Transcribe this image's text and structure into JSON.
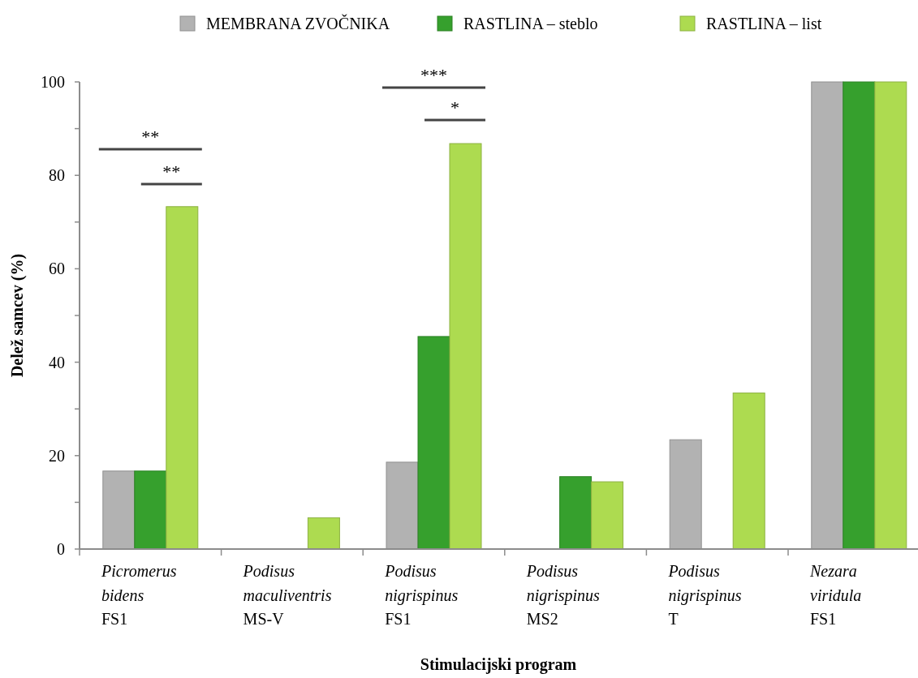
{
  "chart_data": {
    "type": "bar",
    "xlabel": "Stimulacijski program",
    "ylabel": "Delež samcev (%)",
    "categories": [
      "Picromerus\nbidens\nFS1",
      "Podisus\nmaculiventris\nMS-V",
      "Podisus\nnigrispinus\nFS1",
      "Podisus\nnigrispinus\nMS2",
      "Podisus\nnigrispinus\nT",
      "Nezara\nviridula\nFS1"
    ],
    "series": [
      {
        "name": "MEMBRANA ZVOČNIKA",
        "color": "#b2b2b2",
        "values": [
          16.7,
          0,
          18.6,
          0,
          23.4,
          100
        ]
      },
      {
        "name": "RASTLINA – steblo",
        "color": "#36a02d",
        "values": [
          16.7,
          0,
          45.5,
          15.5,
          0,
          100
        ]
      },
      {
        "name": "RASTLINA – list",
        "color": "#addb50",
        "values": [
          73.3,
          6.7,
          86.8,
          14.4,
          33.4,
          100
        ]
      }
    ],
    "ylim": [
      0,
      100
    ],
    "yticks": [
      0,
      {
        "value": 10,
        "label": null
      },
      20,
      {
        "value": 30,
        "label": null
      },
      40,
      {
        "value": 50,
        "label": null
      },
      60,
      {
        "value": 70,
        "label": null
      },
      80,
      {
        "value": 90,
        "label": null
      },
      100
    ],
    "annotations": [
      "**",
      "**",
      "***",
      "*"
    ],
    "grid": false,
    "legend": "top"
  }
}
